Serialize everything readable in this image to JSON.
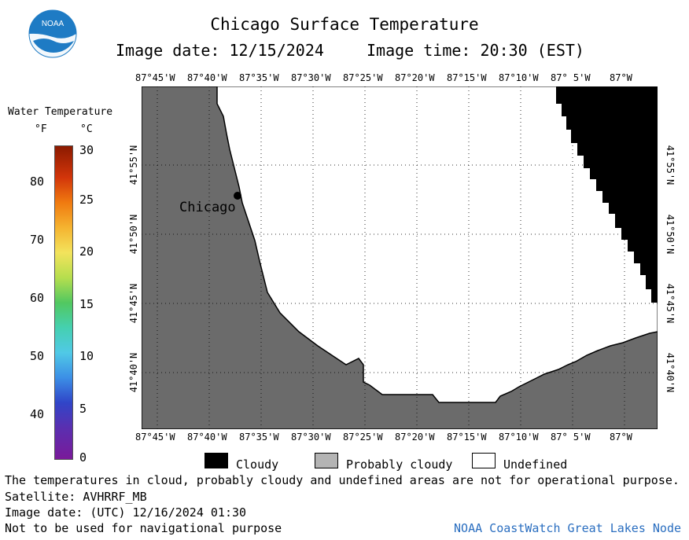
{
  "header": {
    "title": "Chicago Surface Temperature",
    "image_date": "Image date: 12/15/2024",
    "image_time": "Image time: 20:30 (EST)",
    "logo_text": "NOAA"
  },
  "colorbar": {
    "title": "Water Temperature",
    "unit_f": "°F",
    "unit_c": "°C",
    "f_ticks": [
      "80",
      "70",
      "60",
      "50",
      "40"
    ],
    "c_ticks": [
      "30",
      "25",
      "20",
      "15",
      "10",
      "5",
      "0"
    ]
  },
  "map": {
    "lon_labels": [
      "87°45'W",
      "87°40'W",
      "87°35'W",
      "87°30'W",
      "87°25'W",
      "87°20'W",
      "87°15'W",
      "87°10'W",
      "87° 5'W",
      "87°W"
    ],
    "lat_labels": [
      "41°55'N",
      "41°50'N",
      "41°45'N",
      "41°40'N"
    ],
    "city_label": "Chicago",
    "land_color": "#6b6b6b",
    "cloud_color": "#000000",
    "undefined_color": "#ffffff"
  },
  "legend": {
    "cloudy": "Cloudy",
    "probably_cloudy": "Probably cloudy",
    "undefined": "Undefined",
    "cloudy_color": "#000000",
    "probably_cloudy_color": "#b4b4b4",
    "undefined_color": "#ffffff"
  },
  "footer": {
    "note": "The temperatures in cloud, probably cloudy and undefined areas are not for operational purpose.",
    "satellite": "Satellite: AVHRRF_MB",
    "utc_date": "Image date: (UTC) 12/16/2024  01:30",
    "nav_warning": "Not to be used for navigational purpose",
    "credit": "NOAA CoastWatch Great Lakes Node"
  }
}
